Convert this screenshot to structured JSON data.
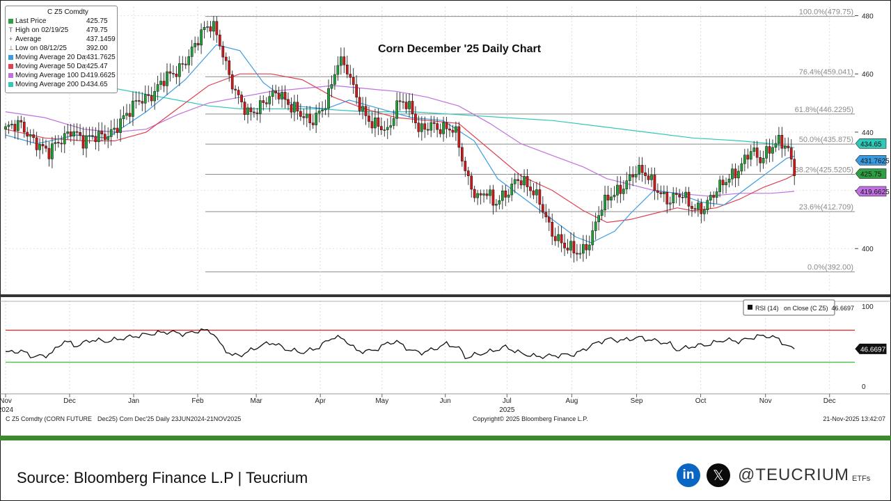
{
  "legend": {
    "title": "C Z5 Comdty",
    "rows": [
      {
        "label": "Last Price",
        "value": "425.75",
        "color": "#2ea043",
        "symbol": "square"
      },
      {
        "label": "High on 02/19/25",
        "value": "479.75",
        "symbol": "T"
      },
      {
        "label": "Average",
        "value": "437.1459",
        "symbol": "+"
      },
      {
        "label": "Low on 08/12/25",
        "value": "392.00",
        "symbol": "⊥"
      },
      {
        "label": "Moving Average 20 Day",
        "value": "431.7625",
        "color": "#3b9be0",
        "symbol": "square"
      },
      {
        "label": "Moving Average 50 Day",
        "value": "425.47",
        "color": "#e04050",
        "symbol": "square"
      },
      {
        "label": "Moving Average 100 Day",
        "value": "419.6625",
        "color": "#c070e0",
        "symbol": "square"
      },
      {
        "label": "Moving Average 200 Day",
        "value": "434.65",
        "color": "#30c8b8",
        "symbol": "square"
      }
    ]
  },
  "rsi_legend": "RSI (14)   on Close (C Z5)  46.6697",
  "footer": {
    "left": "C Z5 Comdty (CORN FUTURE",
    "mid": "Dec25) Corn Dec'25 Daily 23JUN2024-21NOV2025",
    "center": "Copyright© 2025 Bloomberg Finance L.P.",
    "right": "21-Nov-2025 13:42:07"
  },
  "source_text": "Source: Bloomberg Finance L.P | Teucrium",
  "social": {
    "linkedin": "in",
    "x": "𝕏",
    "handle": "@TEUCRIUM",
    "suffix": "ETFs"
  },
  "chart_data": {
    "type": "candlestick",
    "title": "Corn December '25 Daily Chart",
    "ylim": [
      385,
      483
    ],
    "y_ticks": [
      400,
      420,
      440,
      460,
      480
    ],
    "x_labels": [
      {
        "label": "Nov",
        "year": "2024",
        "t": 0.0
      },
      {
        "label": "Dec",
        "t": 0.082
      },
      {
        "label": "Jan",
        "t": 0.164
      },
      {
        "label": "Feb",
        "t": 0.246
      },
      {
        "label": "Mar",
        "t": 0.321
      },
      {
        "label": "Apr",
        "t": 0.403
      },
      {
        "label": "May",
        "t": 0.482
      },
      {
        "label": "Jun",
        "t": 0.563
      },
      {
        "label": "Jul",
        "t": 0.642,
        "year": "2025"
      },
      {
        "label": "Aug",
        "t": 0.725
      },
      {
        "label": "Sep",
        "t": 0.808
      },
      {
        "label": "Oct",
        "t": 0.89
      },
      {
        "label": "Nov",
        "t": 0.973
      },
      {
        "label": "Dec",
        "t": 1.055
      }
    ],
    "fib_levels": [
      {
        "label": "100.0%(479.75)",
        "value": 479.75
      },
      {
        "label": "76.4%(459.041)",
        "value": 459.041
      },
      {
        "label": "61.8%(446.2295)",
        "value": 446.2295
      },
      {
        "label": "50.0%(435.875)",
        "value": 435.875
      },
      {
        "label": "38.2%(425.5205)",
        "value": 425.5205
      },
      {
        "label": "23.6%(412.709)",
        "value": 412.709
      },
      {
        "label": "0.0%(392.00)",
        "value": 392.0
      }
    ],
    "price_keypoints": [
      [
        0,
        441
      ],
      [
        0.02,
        442
      ],
      [
        0.04,
        437
      ],
      [
        0.055,
        432
      ],
      [
        0.07,
        437
      ],
      [
        0.085,
        442
      ],
      [
        0.1,
        436
      ],
      [
        0.12,
        439
      ],
      [
        0.14,
        441
      ],
      [
        0.155,
        445
      ],
      [
        0.17,
        452
      ],
      [
        0.19,
        453
      ],
      [
        0.205,
        458
      ],
      [
        0.22,
        462
      ],
      [
        0.24,
        468
      ],
      [
        0.255,
        475
      ],
      [
        0.265,
        478
      ],
      [
        0.275,
        471
      ],
      [
        0.285,
        460
      ],
      [
        0.295,
        452
      ],
      [
        0.31,
        447
      ],
      [
        0.33,
        450
      ],
      [
        0.35,
        453
      ],
      [
        0.37,
        449
      ],
      [
        0.39,
        442
      ],
      [
        0.405,
        448
      ],
      [
        0.415,
        455
      ],
      [
        0.425,
        464
      ],
      [
        0.435,
        462
      ],
      [
        0.445,
        455
      ],
      [
        0.455,
        449
      ],
      [
        0.47,
        443
      ],
      [
        0.49,
        439
      ],
      [
        0.5,
        450
      ],
      [
        0.51,
        452
      ],
      [
        0.52,
        447
      ],
      [
        0.53,
        439
      ],
      [
        0.545,
        443
      ],
      [
        0.56,
        442
      ],
      [
        0.575,
        440
      ],
      [
        0.59,
        425
      ],
      [
        0.605,
        418
      ],
      [
        0.615,
        420
      ],
      [
        0.625,
        414
      ],
      [
        0.64,
        419
      ],
      [
        0.655,
        425
      ],
      [
        0.67,
        420
      ],
      [
        0.685,
        416
      ],
      [
        0.7,
        406
      ],
      [
        0.715,
        400
      ],
      [
        0.725,
        399
      ],
      [
        0.735,
        399
      ],
      [
        0.75,
        404
      ],
      [
        0.76,
        412
      ],
      [
        0.775,
        418
      ],
      [
        0.79,
        422
      ],
      [
        0.805,
        426
      ],
      [
        0.82,
        425
      ],
      [
        0.835,
        421
      ],
      [
        0.85,
        416
      ],
      [
        0.865,
        418
      ],
      [
        0.88,
        415
      ],
      [
        0.895,
        414
      ],
      [
        0.91,
        419
      ],
      [
        0.925,
        425
      ],
      [
        0.94,
        428
      ],
      [
        0.955,
        433
      ],
      [
        0.965,
        430
      ],
      [
        0.98,
        436
      ],
      [
        0.99,
        437
      ],
      [
        1.0,
        434
      ],
      [
        1.01,
        426
      ]
    ],
    "ma_20": [
      [
        0,
        439
      ],
      [
        0.04,
        436
      ],
      [
        0.09,
        439
      ],
      [
        0.13,
        438
      ],
      [
        0.18,
        447
      ],
      [
        0.23,
        458
      ],
      [
        0.27,
        470
      ],
      [
        0.3,
        468
      ],
      [
        0.33,
        457
      ],
      [
        0.37,
        449
      ],
      [
        0.41,
        448
      ],
      [
        0.44,
        451
      ],
      [
        0.48,
        448
      ],
      [
        0.52,
        445
      ],
      [
        0.56,
        444
      ],
      [
        0.6,
        437
      ],
      [
        0.63,
        424
      ],
      [
        0.66,
        418
      ],
      [
        0.7,
        410
      ],
      [
        0.73,
        404
      ],
      [
        0.75,
        402
      ],
      [
        0.78,
        406
      ],
      [
        0.8,
        412
      ],
      [
        0.83,
        420
      ],
      [
        0.86,
        419
      ],
      [
        0.89,
        416
      ],
      [
        0.92,
        415
      ],
      [
        0.95,
        421
      ],
      [
        0.98,
        427
      ],
      [
        1.0,
        431
      ],
      [
        1.01,
        431.76
      ]
    ],
    "ma_50": [
      [
        0,
        441
      ],
      [
        0.05,
        438
      ],
      [
        0.1,
        437
      ],
      [
        0.14,
        437
      ],
      [
        0.18,
        440
      ],
      [
        0.22,
        448
      ],
      [
        0.26,
        456
      ],
      [
        0.3,
        460
      ],
      [
        0.34,
        460
      ],
      [
        0.38,
        458
      ],
      [
        0.42,
        452
      ],
      [
        0.46,
        448
      ],
      [
        0.5,
        445
      ],
      [
        0.54,
        444
      ],
      [
        0.58,
        443
      ],
      [
        0.62,
        434
      ],
      [
        0.66,
        425
      ],
      [
        0.7,
        420
      ],
      [
        0.74,
        413
      ],
      [
        0.77,
        409
      ],
      [
        0.8,
        410
      ],
      [
        0.83,
        412
      ],
      [
        0.86,
        414
      ],
      [
        0.88,
        413
      ],
      [
        0.91,
        414
      ],
      [
        0.94,
        417
      ],
      [
        0.97,
        421
      ],
      [
        1.0,
        424
      ],
      [
        1.01,
        425.47
      ]
    ],
    "ma_100": [
      [
        0,
        447
      ],
      [
        0.05,
        445
      ],
      [
        0.1,
        441
      ],
      [
        0.14,
        440
      ],
      [
        0.18,
        441
      ],
      [
        0.22,
        446
      ],
      [
        0.26,
        450
      ],
      [
        0.3,
        452
      ],
      [
        0.34,
        454
      ],
      [
        0.38,
        455
      ],
      [
        0.42,
        456
      ],
      [
        0.46,
        455
      ],
      [
        0.5,
        454
      ],
      [
        0.54,
        452
      ],
      [
        0.58,
        449
      ],
      [
        0.62,
        443
      ],
      [
        0.66,
        436
      ],
      [
        0.7,
        432
      ],
      [
        0.74,
        428
      ],
      [
        0.77,
        424
      ],
      [
        0.8,
        422
      ],
      [
        0.83,
        420
      ],
      [
        0.86,
        419
      ],
      [
        0.9,
        418
      ],
      [
        0.94,
        419
      ],
      [
        0.98,
        419
      ],
      [
        1.01,
        419.66
      ]
    ],
    "ma_200": [
      [
        0.14,
        455
      ],
      [
        0.2,
        452
      ],
      [
        0.26,
        449
      ],
      [
        0.3,
        448
      ],
      [
        0.34,
        448
      ],
      [
        0.4,
        448
      ],
      [
        0.46,
        447
      ],
      [
        0.52,
        447
      ],
      [
        0.58,
        446
      ],
      [
        0.64,
        445
      ],
      [
        0.7,
        444
      ],
      [
        0.76,
        442
      ],
      [
        0.82,
        440
      ],
      [
        0.88,
        438
      ],
      [
        0.94,
        437
      ],
      [
        0.98,
        436
      ],
      [
        1.01,
        434.65
      ]
    ],
    "rsi": {
      "ylim": [
        0,
        100
      ],
      "y_ticks": [
        0,
        100
      ],
      "upper_band": 70,
      "lower_band": 30,
      "last": 46.6697,
      "keypoints": [
        [
          0,
          42
        ],
        [
          0.02,
          44
        ],
        [
          0.035,
          37
        ],
        [
          0.05,
          38
        ],
        [
          0.06,
          42
        ],
        [
          0.075,
          57
        ],
        [
          0.09,
          50
        ],
        [
          0.11,
          58
        ],
        [
          0.13,
          56
        ],
        [
          0.15,
          60
        ],
        [
          0.17,
          63
        ],
        [
          0.19,
          66
        ],
        [
          0.21,
          68
        ],
        [
          0.23,
          65
        ],
        [
          0.25,
          70
        ],
        [
          0.265,
          68
        ],
        [
          0.275,
          52
        ],
        [
          0.29,
          38
        ],
        [
          0.305,
          40
        ],
        [
          0.32,
          48
        ],
        [
          0.34,
          55
        ],
        [
          0.36,
          46
        ],
        [
          0.38,
          42
        ],
        [
          0.4,
          48
        ],
        [
          0.42,
          62
        ],
        [
          0.435,
          58
        ],
        [
          0.45,
          44
        ],
        [
          0.47,
          44
        ],
        [
          0.49,
          54
        ],
        [
          0.5,
          56
        ],
        [
          0.52,
          44
        ],
        [
          0.535,
          42
        ],
        [
          0.55,
          47
        ],
        [
          0.565,
          53
        ],
        [
          0.58,
          48
        ],
        [
          0.59,
          35
        ],
        [
          0.6,
          39
        ],
        [
          0.62,
          43
        ],
        [
          0.64,
          49
        ],
        [
          0.66,
          41
        ],
        [
          0.68,
          37
        ],
        [
          0.7,
          38
        ],
        [
          0.715,
          39
        ],
        [
          0.73,
          40
        ],
        [
          0.75,
          51
        ],
        [
          0.77,
          59
        ],
        [
          0.79,
          57
        ],
        [
          0.81,
          61
        ],
        [
          0.83,
          57
        ],
        [
          0.85,
          53
        ],
        [
          0.86,
          45
        ],
        [
          0.88,
          50
        ],
        [
          0.9,
          52
        ],
        [
          0.92,
          58
        ],
        [
          0.94,
          56
        ],
        [
          0.96,
          62
        ],
        [
          0.975,
          63
        ],
        [
          0.99,
          59
        ],
        [
          1.0,
          50
        ],
        [
          1.01,
          46.67
        ]
      ]
    }
  }
}
